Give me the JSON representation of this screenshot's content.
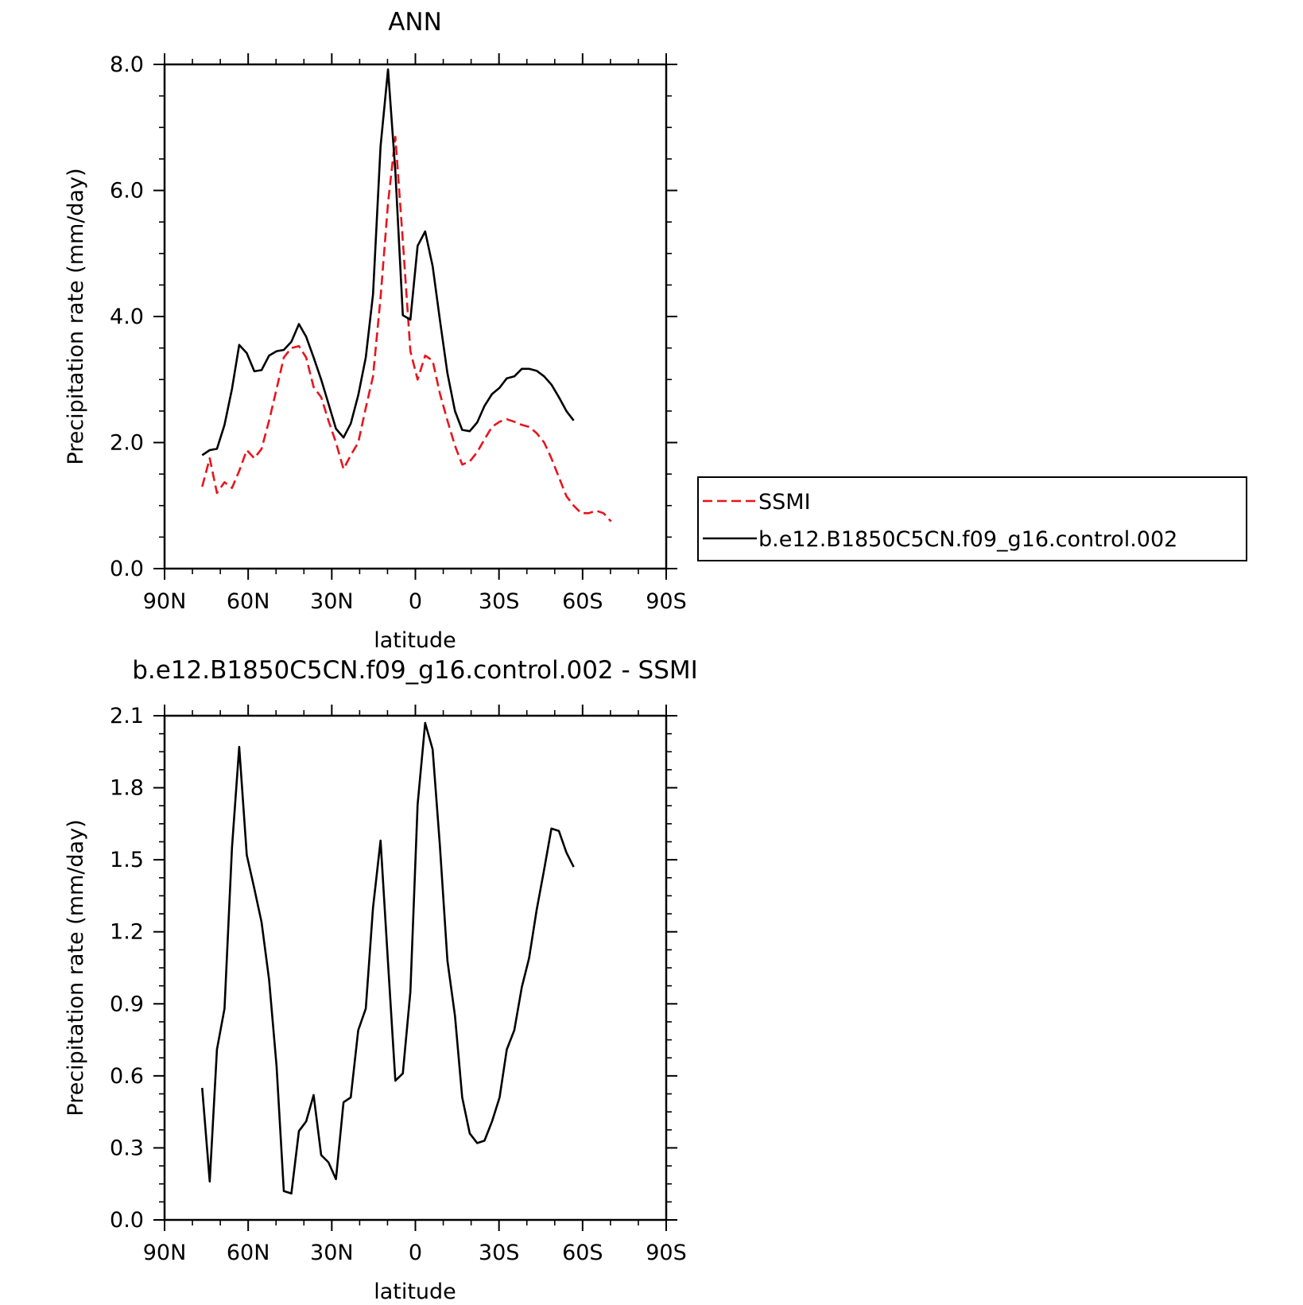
{
  "chart_data": [
    {
      "type": "line",
      "title": "ANN",
      "xlabel": "latitude",
      "ylabel": "Precipitation rate (mm/day)",
      "xlim": [
        90,
        -90
      ],
      "ylim": [
        0,
        8
      ],
      "x_ticks": [
        90,
        60,
        30,
        0,
        -30,
        -60,
        -90
      ],
      "x_tick_labels": [
        "90N",
        "60N",
        "30N",
        "0",
        "30S",
        "60S",
        "90S"
      ],
      "y_ticks": [
        0,
        2,
        4,
        6,
        8
      ],
      "y_tick_labels": [
        "0.0",
        "2.0",
        "4.0",
        "6.0",
        "8.0"
      ],
      "legend_position": "right",
      "series": [
        {
          "name": "SSMI",
          "color": "#e8141c",
          "dashed": true,
          "points": [
            [
              76.5,
              1.3
            ],
            [
              73.8,
              1.75
            ],
            [
              71.2,
              1.2
            ],
            [
              68.5,
              1.37
            ],
            [
              65.8,
              1.28
            ],
            [
              63.2,
              1.55
            ],
            [
              60.5,
              1.88
            ],
            [
              57.8,
              1.75
            ],
            [
              55.2,
              1.9
            ],
            [
              52.5,
              2.35
            ],
            [
              49.8,
              2.85
            ],
            [
              47.2,
              3.35
            ],
            [
              44.5,
              3.5
            ],
            [
              41.8,
              3.53
            ],
            [
              39.2,
              3.35
            ],
            [
              36.5,
              2.88
            ],
            [
              33.8,
              2.72
            ],
            [
              31.2,
              2.35
            ],
            [
              28.5,
              2.0
            ],
            [
              25.8,
              1.58
            ],
            [
              23.2,
              1.8
            ],
            [
              20.5,
              2.0
            ],
            [
              17.8,
              2.55
            ],
            [
              15.2,
              3.05
            ],
            [
              12.5,
              4.3
            ],
            [
              9.8,
              5.8
            ],
            [
              7.2,
              6.85
            ],
            [
              4.5,
              5.2
            ],
            [
              1.8,
              3.45
            ],
            [
              -0.8,
              3.0
            ],
            [
              -3.5,
              3.38
            ],
            [
              -6.2,
              3.3
            ],
            [
              -8.8,
              2.78
            ],
            [
              -11.5,
              2.35
            ],
            [
              -14.2,
              1.95
            ],
            [
              -16.8,
              1.65
            ],
            [
              -19.5,
              1.7
            ],
            [
              -22.2,
              1.85
            ],
            [
              -24.8,
              2.05
            ],
            [
              -27.5,
              2.25
            ],
            [
              -30.2,
              2.33
            ],
            [
              -32.8,
              2.37
            ],
            [
              -35.5,
              2.33
            ],
            [
              -38.2,
              2.28
            ],
            [
              -40.8,
              2.25
            ],
            [
              -43.5,
              2.15
            ],
            [
              -46.2,
              2.0
            ],
            [
              -48.8,
              1.75
            ],
            [
              -51.5,
              1.45
            ],
            [
              -54.2,
              1.15
            ],
            [
              -56.8,
              1.0
            ],
            [
              -59.5,
              0.88
            ],
            [
              -62.2,
              0.88
            ],
            [
              -64.8,
              0.92
            ],
            [
              -67.5,
              0.88
            ],
            [
              -70.2,
              0.75
            ]
          ]
        },
        {
          "name": "b.e12.B1850C5CN.f09_g16.control.002",
          "color": "#000000",
          "dashed": false,
          "points": [
            [
              76.5,
              1.8
            ],
            [
              73.8,
              1.88
            ],
            [
              71.2,
              1.9
            ],
            [
              68.5,
              2.28
            ],
            [
              65.8,
              2.85
            ],
            [
              63.2,
              3.55
            ],
            [
              60.5,
              3.42
            ],
            [
              57.8,
              3.13
            ],
            [
              55.2,
              3.15
            ],
            [
              52.5,
              3.38
            ],
            [
              49.8,
              3.45
            ],
            [
              47.2,
              3.47
            ],
            [
              44.5,
              3.6
            ],
            [
              41.8,
              3.88
            ],
            [
              39.2,
              3.68
            ],
            [
              36.5,
              3.35
            ],
            [
              33.8,
              3.0
            ],
            [
              31.2,
              2.62
            ],
            [
              28.5,
              2.22
            ],
            [
              25.8,
              2.08
            ],
            [
              23.2,
              2.3
            ],
            [
              20.5,
              2.75
            ],
            [
              17.8,
              3.35
            ],
            [
              15.2,
              4.35
            ],
            [
              12.5,
              6.7
            ],
            [
              9.8,
              7.92
            ],
            [
              7.2,
              6.3
            ],
            [
              4.5,
              4.02
            ],
            [
              1.8,
              3.95
            ],
            [
              -0.8,
              5.12
            ],
            [
              -3.5,
              5.35
            ],
            [
              -6.2,
              4.8
            ],
            [
              -8.8,
              3.95
            ],
            [
              -11.5,
              3.1
            ],
            [
              -14.2,
              2.5
            ],
            [
              -16.8,
              2.2
            ],
            [
              -19.5,
              2.18
            ],
            [
              -22.2,
              2.32
            ],
            [
              -24.8,
              2.58
            ],
            [
              -27.5,
              2.77
            ],
            [
              -30.2,
              2.87
            ],
            [
              -32.8,
              3.02
            ],
            [
              -35.5,
              3.05
            ],
            [
              -38.2,
              3.17
            ],
            [
              -40.8,
              3.17
            ],
            [
              -43.5,
              3.14
            ],
            [
              -46.2,
              3.05
            ],
            [
              -48.8,
              2.92
            ],
            [
              -51.5,
              2.72
            ],
            [
              -54.2,
              2.5
            ],
            [
              -56.8,
              2.35
            ]
          ]
        }
      ]
    },
    {
      "type": "line",
      "title": "b.e12.B1850C5CN.f09_g16.control.002 - SSMI",
      "xlabel": "latitude",
      "ylabel": "Precipitation rate (mm/day)",
      "xlim": [
        90,
        -90
      ],
      "ylim": [
        0,
        2.1
      ],
      "x_ticks": [
        90,
        60,
        30,
        0,
        -30,
        -60,
        -90
      ],
      "x_tick_labels": [
        "90N",
        "60N",
        "30N",
        "0",
        "30S",
        "60S",
        "90S"
      ],
      "y_ticks": [
        0,
        0.3,
        0.6,
        0.9,
        1.2,
        1.5,
        1.8,
        2.1
      ],
      "y_tick_labels": [
        "0.0",
        "0.3",
        "0.6",
        "0.9",
        "1.2",
        "1.5",
        "1.8",
        "2.1"
      ],
      "series": [
        {
          "color": "#000000",
          "dashed": false,
          "points": [
            [
              76.5,
              0.55
            ],
            [
              73.8,
              0.16
            ],
            [
              71.2,
              0.71
            ],
            [
              68.5,
              0.88
            ],
            [
              65.8,
              1.55
            ],
            [
              63.2,
              1.97
            ],
            [
              60.5,
              1.52
            ],
            [
              57.8,
              1.38
            ],
            [
              55.2,
              1.24
            ],
            [
              52.5,
              1.0
            ],
            [
              49.8,
              0.64
            ],
            [
              47.2,
              0.12
            ],
            [
              44.5,
              0.11
            ],
            [
              41.8,
              0.37
            ],
            [
              39.2,
              0.41
            ],
            [
              36.5,
              0.52
            ],
            [
              33.8,
              0.27
            ],
            [
              31.2,
              0.24
            ],
            [
              28.5,
              0.17
            ],
            [
              25.8,
              0.49
            ],
            [
              23.2,
              0.51
            ],
            [
              20.5,
              0.79
            ],
            [
              17.8,
              0.88
            ],
            [
              15.2,
              1.3
            ],
            [
              12.5,
              1.58
            ],
            [
              9.8,
              1.07
            ],
            [
              7.2,
              0.58
            ],
            [
              4.5,
              0.61
            ],
            [
              1.8,
              0.95
            ],
            [
              -0.8,
              1.73
            ],
            [
              -3.5,
              2.07
            ],
            [
              -6.2,
              1.96
            ],
            [
              -8.8,
              1.56
            ],
            [
              -11.5,
              1.08
            ],
            [
              -14.2,
              0.85
            ],
            [
              -16.8,
              0.51
            ],
            [
              -19.5,
              0.36
            ],
            [
              -22.2,
              0.32
            ],
            [
              -24.8,
              0.33
            ],
            [
              -27.5,
              0.41
            ],
            [
              -30.2,
              0.51
            ],
            [
              -32.8,
              0.71
            ],
            [
              -35.5,
              0.79
            ],
            [
              -38.2,
              0.97
            ],
            [
              -40.8,
              1.09
            ],
            [
              -43.5,
              1.29
            ],
            [
              -46.2,
              1.46
            ],
            [
              -48.8,
              1.63
            ],
            [
              -51.5,
              1.62
            ],
            [
              -54.2,
              1.53
            ],
            [
              -56.8,
              1.47
            ]
          ]
        }
      ]
    }
  ]
}
